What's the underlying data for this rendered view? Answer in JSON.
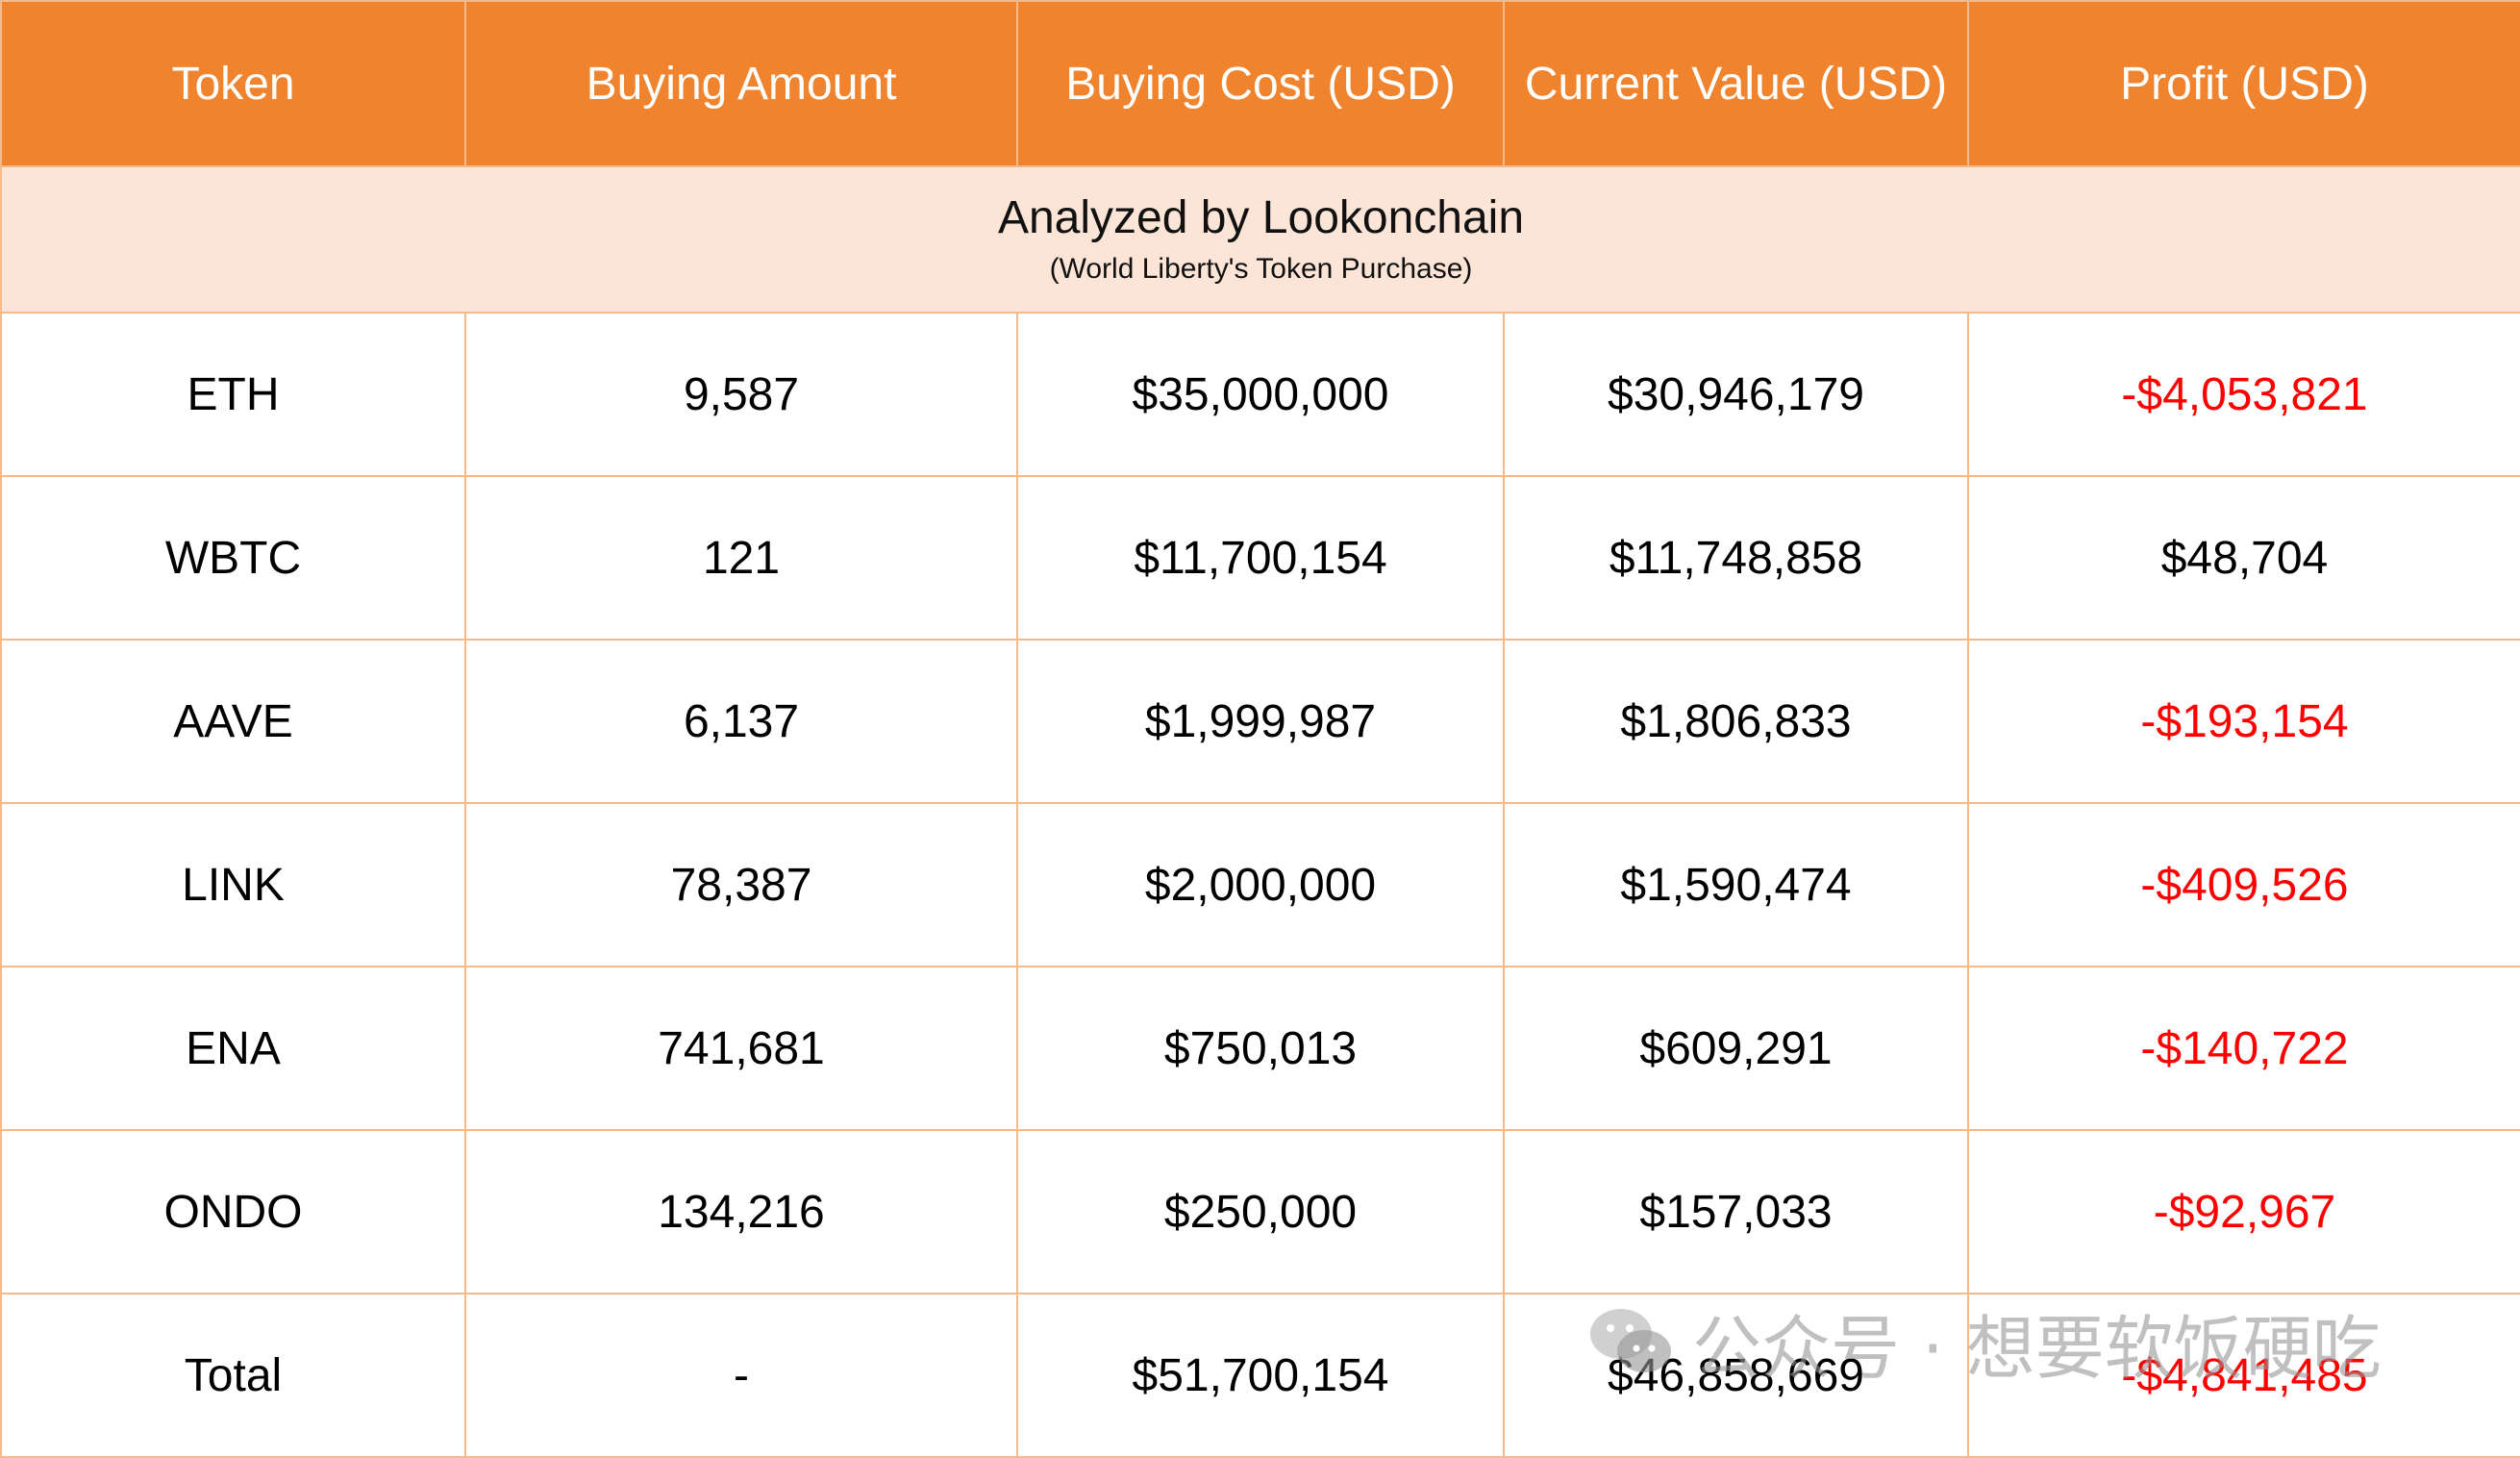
{
  "headers": [
    "Token",
    "Buying Amount",
    "Buying Cost (USD)",
    "Current Value (USD)",
    "Profit (USD)"
  ],
  "banner": {
    "title": "Analyzed by Lookonchain",
    "subtitle": "(World Liberty's Token Purchase)"
  },
  "rows": [
    {
      "token": "ETH",
      "amount": "9,587",
      "cost": "$35,000,000",
      "value": "$30,946,179",
      "profit": "-$4,053,821",
      "negative": true
    },
    {
      "token": "WBTC",
      "amount": "121",
      "cost": "$11,700,154",
      "value": "$11,748,858",
      "profit": "$48,704",
      "negative": false
    },
    {
      "token": "AAVE",
      "amount": "6,137",
      "cost": "$1,999,987",
      "value": "$1,806,833",
      "profit": "-$193,154",
      "negative": true
    },
    {
      "token": "LINK",
      "amount": "78,387",
      "cost": "$2,000,000",
      "value": "$1,590,474",
      "profit": "-$409,526",
      "negative": true
    },
    {
      "token": "ENA",
      "amount": "741,681",
      "cost": "$750,013",
      "value": "$609,291",
      "profit": "-$140,722",
      "negative": true
    },
    {
      "token": "ONDO",
      "amount": "134,216",
      "cost": "$250,000",
      "value": "$157,033",
      "profit": "-$92,967",
      "negative": true
    },
    {
      "token": "Total",
      "amount": "-",
      "cost": "$51,700,154",
      "value": "$46,858,669",
      "profit": "-$4,841,485",
      "negative": true
    }
  ],
  "watermark": "公众号 · 想要软饭硬吃",
  "colors": {
    "header_bg": "#f0832e",
    "banner_bg": "#fce4d6",
    "border": "#f5b98a",
    "negative": "#ff0000"
  }
}
